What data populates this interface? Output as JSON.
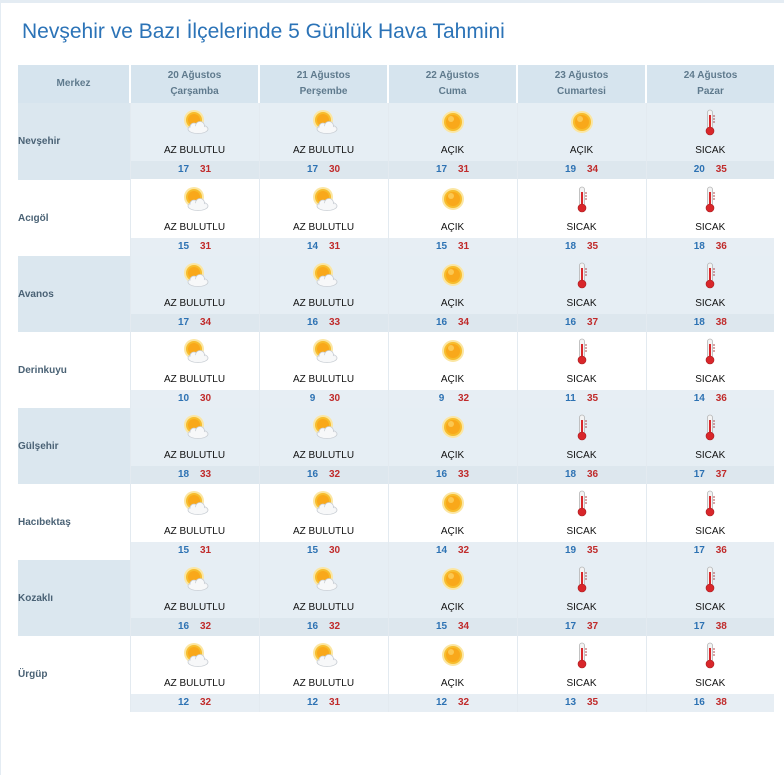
{
  "title": "Nevşehir ve Bazı İlçelerinde 5 Günlük Hava Tahmini",
  "header": {
    "merkez_label": "Merkez",
    "days": [
      {
        "date": "20 Ağustos",
        "weekday": "Çarşamba"
      },
      {
        "date": "21 Ağustos",
        "weekday": "Perşembe"
      },
      {
        "date": "22 Ağustos",
        "weekday": "Cuma"
      },
      {
        "date": "23 Ağustos",
        "weekday": "Cumartesi"
      },
      {
        "date": "24 Ağustos",
        "weekday": "Pazar"
      }
    ]
  },
  "colors": {
    "title": "#2b73b7",
    "min_temp": "#2d72b3",
    "max_temp": "#c02b2b",
    "header_bg": "#d6e4ee"
  },
  "rows": [
    {
      "name": "Nevşehir",
      "days": [
        {
          "icon": "partly-cloudy-icon",
          "cond": "AZ BULUTLU",
          "min": "17",
          "max": "31"
        },
        {
          "icon": "partly-cloudy-icon",
          "cond": "AZ BULUTLU",
          "min": "17",
          "max": "30"
        },
        {
          "icon": "sun-icon",
          "cond": "AÇIK",
          "min": "17",
          "max": "31"
        },
        {
          "icon": "sun-icon",
          "cond": "AÇIK",
          "min": "19",
          "max": "34"
        },
        {
          "icon": "thermometer-icon",
          "cond": "SICAK",
          "min": "20",
          "max": "35"
        }
      ]
    },
    {
      "name": "Acıgöl",
      "days": [
        {
          "icon": "partly-cloudy-icon",
          "cond": "AZ BULUTLU",
          "min": "15",
          "max": "31"
        },
        {
          "icon": "partly-cloudy-icon",
          "cond": "AZ BULUTLU",
          "min": "14",
          "max": "31"
        },
        {
          "icon": "sun-icon",
          "cond": "AÇIK",
          "min": "15",
          "max": "31"
        },
        {
          "icon": "thermometer-icon",
          "cond": "SICAK",
          "min": "18",
          "max": "35"
        },
        {
          "icon": "thermometer-icon",
          "cond": "SICAK",
          "min": "18",
          "max": "36"
        }
      ]
    },
    {
      "name": "Avanos",
      "days": [
        {
          "icon": "partly-cloudy-icon",
          "cond": "AZ BULUTLU",
          "min": "17",
          "max": "34"
        },
        {
          "icon": "partly-cloudy-icon",
          "cond": "AZ BULUTLU",
          "min": "16",
          "max": "33"
        },
        {
          "icon": "sun-icon",
          "cond": "AÇIK",
          "min": "16",
          "max": "34"
        },
        {
          "icon": "thermometer-icon",
          "cond": "SICAK",
          "min": "16",
          "max": "37"
        },
        {
          "icon": "thermometer-icon",
          "cond": "SICAK",
          "min": "18",
          "max": "38"
        }
      ]
    },
    {
      "name": "Derinkuyu",
      "days": [
        {
          "icon": "partly-cloudy-icon",
          "cond": "AZ BULUTLU",
          "min": "10",
          "max": "30"
        },
        {
          "icon": "partly-cloudy-icon",
          "cond": "AZ BULUTLU",
          "min": "9",
          "max": "30"
        },
        {
          "icon": "sun-icon",
          "cond": "AÇIK",
          "min": "9",
          "max": "32"
        },
        {
          "icon": "thermometer-icon",
          "cond": "SICAK",
          "min": "11",
          "max": "35"
        },
        {
          "icon": "thermometer-icon",
          "cond": "SICAK",
          "min": "14",
          "max": "36"
        }
      ]
    },
    {
      "name": "Gülşehir",
      "days": [
        {
          "icon": "partly-cloudy-icon",
          "cond": "AZ BULUTLU",
          "min": "18",
          "max": "33"
        },
        {
          "icon": "partly-cloudy-icon",
          "cond": "AZ BULUTLU",
          "min": "16",
          "max": "32"
        },
        {
          "icon": "sun-icon",
          "cond": "AÇIK",
          "min": "16",
          "max": "33"
        },
        {
          "icon": "thermometer-icon",
          "cond": "SICAK",
          "min": "18",
          "max": "36"
        },
        {
          "icon": "thermometer-icon",
          "cond": "SICAK",
          "min": "17",
          "max": "37"
        }
      ]
    },
    {
      "name": "Hacıbektaş",
      "days": [
        {
          "icon": "partly-cloudy-icon",
          "cond": "AZ BULUTLU",
          "min": "15",
          "max": "31"
        },
        {
          "icon": "partly-cloudy-icon",
          "cond": "AZ BULUTLU",
          "min": "15",
          "max": "30"
        },
        {
          "icon": "sun-icon",
          "cond": "AÇIK",
          "min": "14",
          "max": "32"
        },
        {
          "icon": "thermometer-icon",
          "cond": "SICAK",
          "min": "19",
          "max": "35"
        },
        {
          "icon": "thermometer-icon",
          "cond": "SICAK",
          "min": "17",
          "max": "36"
        }
      ]
    },
    {
      "name": "Kozaklı",
      "days": [
        {
          "icon": "partly-cloudy-icon",
          "cond": "AZ BULUTLU",
          "min": "16",
          "max": "32"
        },
        {
          "icon": "partly-cloudy-icon",
          "cond": "AZ BULUTLU",
          "min": "16",
          "max": "32"
        },
        {
          "icon": "sun-icon",
          "cond": "AÇIK",
          "min": "15",
          "max": "34"
        },
        {
          "icon": "thermometer-icon",
          "cond": "SICAK",
          "min": "17",
          "max": "37"
        },
        {
          "icon": "thermometer-icon",
          "cond": "SICAK",
          "min": "17",
          "max": "38"
        }
      ]
    },
    {
      "name": "Ürgüp",
      "days": [
        {
          "icon": "partly-cloudy-icon",
          "cond": "AZ BULUTLU",
          "min": "12",
          "max": "32"
        },
        {
          "icon": "partly-cloudy-icon",
          "cond": "AZ BULUTLU",
          "min": "12",
          "max": "31"
        },
        {
          "icon": "sun-icon",
          "cond": "AÇIK",
          "min": "12",
          "max": "32"
        },
        {
          "icon": "thermometer-icon",
          "cond": "SICAK",
          "min": "13",
          "max": "35"
        },
        {
          "icon": "thermometer-icon",
          "cond": "SICAK",
          "min": "16",
          "max": "38"
        }
      ]
    }
  ]
}
